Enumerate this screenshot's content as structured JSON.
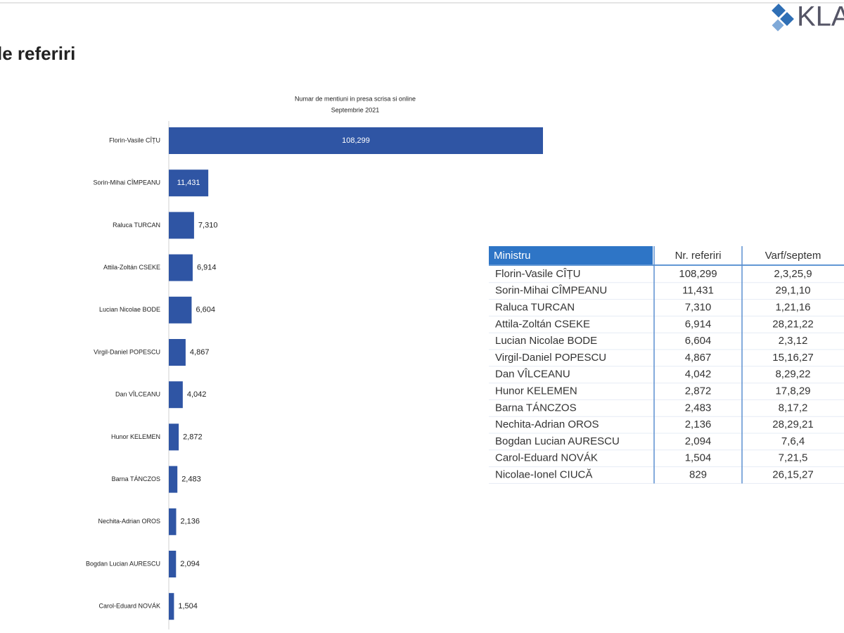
{
  "header": {
    "title": "le referiri",
    "logo": "KLA"
  },
  "chart_data": {
    "type": "bar",
    "orientation": "horizontal",
    "title": "Numar de mentiuni in presa scrisa si online",
    "subtitle": "Septembrie 2021",
    "color": "#2f55a4",
    "categories": [
      "Florin-Vasile CÎȚU",
      "Sorin-Mihai CÎMPEANU",
      "Raluca TURCAN",
      "Attila-Zoltán CSEKE",
      "Lucian Nicolae BODE",
      "Virgil-Daniel POPESCU",
      "Dan VÎLCEANU",
      "Hunor KELEMEN",
      "Barna TÁNCZOS",
      "Nechita-Adrian OROS",
      "Bogdan Lucian AURESCU",
      "Carol-Eduard NOVÁK"
    ],
    "values": [
      108299,
      11431,
      7310,
      6914,
      6604,
      4867,
      4042,
      2872,
      2483,
      2136,
      2094,
      1504
    ],
    "value_labels": [
      "108,299",
      "11,431",
      "7,310",
      "6,914",
      "6,604",
      "4,867",
      "4,042",
      "2,872",
      "2,483",
      "2,136",
      "2,094",
      "1,504"
    ]
  },
  "table": {
    "header": [
      "Ministru",
      "Nr. referiri",
      "Varf/septem"
    ],
    "rows": [
      [
        "Florin-Vasile CÎȚU",
        "108,299",
        "2,3,25,9"
      ],
      [
        "Sorin-Mihai CÎMPEANU",
        "11,431",
        "29,1,10"
      ],
      [
        "Raluca TURCAN",
        "7,310",
        "1,21,16"
      ],
      [
        "Attila-Zoltán CSEKE",
        "6,914",
        "28,21,22"
      ],
      [
        "Lucian Nicolae BODE",
        "6,604",
        "2,3,12"
      ],
      [
        "Virgil-Daniel POPESCU",
        "4,867",
        "15,16,27"
      ],
      [
        "Dan VÎLCEANU",
        "4,042",
        "8,29,22"
      ],
      [
        "Hunor KELEMEN",
        "2,872",
        "17,8,29"
      ],
      [
        "Barna TÁNCZOS",
        "2,483",
        "8,17,2"
      ],
      [
        "Nechita-Adrian OROS",
        "2,136",
        "28,29,21"
      ],
      [
        "Bogdan Lucian AURESCU",
        "2,094",
        "7,6,4"
      ],
      [
        "Carol-Eduard NOVÁK",
        "1,504",
        "7,21,5"
      ],
      [
        "Nicolae-Ionel CIUCĂ",
        "829",
        "26,15,27"
      ]
    ]
  }
}
